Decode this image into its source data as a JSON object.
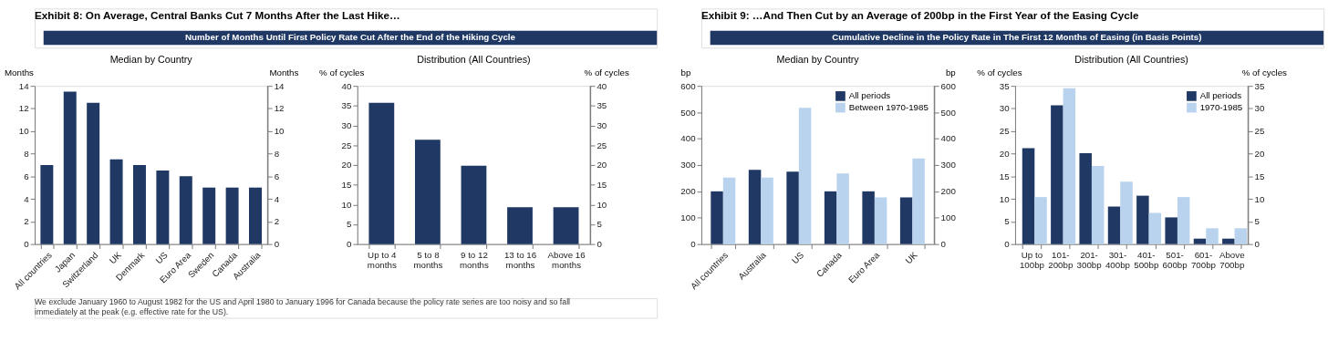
{
  "chart_data": [
    {
      "type": "bar",
      "title": "Median by Country",
      "ylabel": "Months",
      "y2label": "Months",
      "categories": [
        "All countries",
        "Japan",
        "Switzerland",
        "UK",
        "Denmark",
        "US",
        "Euro Area",
        "Sweden",
        "Canada",
        "Australia"
      ],
      "series": [
        {
          "color": "#1f3864",
          "values": [
            7,
            13.5,
            12.5,
            7.5,
            7,
            6.5,
            6,
            5,
            5,
            5
          ]
        }
      ],
      "ylim": [
        0,
        14
      ],
      "yticks": [
        0,
        2,
        4,
        6,
        8,
        10,
        12,
        14
      ],
      "y2lim": [
        0,
        14
      ],
      "y2ticks": [
        0,
        2,
        4,
        6,
        8,
        10,
        12,
        14
      ],
      "annotations": [
        "Exhibit 8: On Average, Central Banks Cut 7 Months After the Last Hike…",
        "Number of Months Until First Policy Rate Cut After the End of the Hiking Cycle",
        "We exclude January 1960 to August 1982 for the US and April 1980 to January 1996 for Canada because the policy rate series are too noisy and so fall immediately at the peak (e.g. effective rate for the US)."
      ]
    },
    {
      "type": "bar",
      "title": "Distribution (All Countries)",
      "ylabel": "% of cycles",
      "y2label": "% of cycles",
      "categories": [
        "Up to 4 months",
        "5 to 8 months",
        "9 to 12 months",
        "13 to 16 months",
        "Above 16 months"
      ],
      "series": [
        {
          "color": "#1f3864",
          "values": [
            35.7,
            26.4,
            19.8,
            9.3,
            9.3
          ]
        }
      ],
      "ylim": [
        0,
        40
      ],
      "yticks": [
        0,
        5,
        10,
        15,
        20,
        25,
        30,
        35,
        40
      ],
      "y2lim": [
        0,
        40
      ],
      "y2ticks": [
        0,
        5,
        10,
        15,
        20,
        25,
        30,
        35,
        40
      ]
    },
    {
      "type": "bar",
      "title": "Median by Country",
      "ylabel": "bp",
      "y2label": "bp",
      "categories": [
        "All countries",
        "Australia",
        "US",
        "Canada",
        "Euro Area",
        "UK"
      ],
      "series": [
        {
          "name": "All periods",
          "color": "#1f3864",
          "values": [
            200,
            282,
            275,
            200,
            200,
            177
          ]
        },
        {
          "name": "Between 1970-1985",
          "color": "#b9d3ee",
          "values": [
            252,
            252,
            517,
            268,
            177,
            325
          ]
        }
      ],
      "ylim": [
        0,
        600
      ],
      "yticks": [
        0,
        100,
        200,
        300,
        400,
        500,
        600
      ],
      "y2lim": [
        0,
        600
      ],
      "y2ticks": [
        0,
        100,
        200,
        300,
        400,
        500,
        600
      ],
      "legend": "top right",
      "annotations": [
        "Exhibit 9: …And Then Cut by an Average of 200bp in the First Year of the Easing Cycle",
        "Cumulative Decline in the Policy Rate in The First 12 Months of Easing (in Basis Points)"
      ]
    },
    {
      "type": "bar",
      "title": "Distribution (All Countries)",
      "ylabel": "% of cycles",
      "y2label": "% of cycles",
      "categories": [
        "Up to 100bp",
        "101-200bp",
        "201-300bp",
        "301-400bp",
        "401-500bp",
        "501-600bp",
        "601-700bp",
        "Above 700bp"
      ],
      "series": [
        {
          "name": "All periods",
          "color": "#1f3864",
          "values": [
            21.2,
            30.7,
            20.1,
            8.3,
            10.7,
            5.9,
            1.2,
            1.2
          ]
        },
        {
          "name": "1970-1985",
          "color": "#b9d3ee",
          "values": [
            10.4,
            34.5,
            17.3,
            13.8,
            6.9,
            10.4,
            3.5,
            3.5
          ]
        }
      ],
      "ylim": [
        0,
        35
      ],
      "yticks": [
        0,
        5,
        10,
        15,
        20,
        25,
        30,
        35
      ],
      "y2lim": [
        0,
        35
      ],
      "y2ticks": [
        0,
        5,
        10,
        15,
        20,
        25,
        30,
        35
      ],
      "legend": "top right"
    }
  ]
}
